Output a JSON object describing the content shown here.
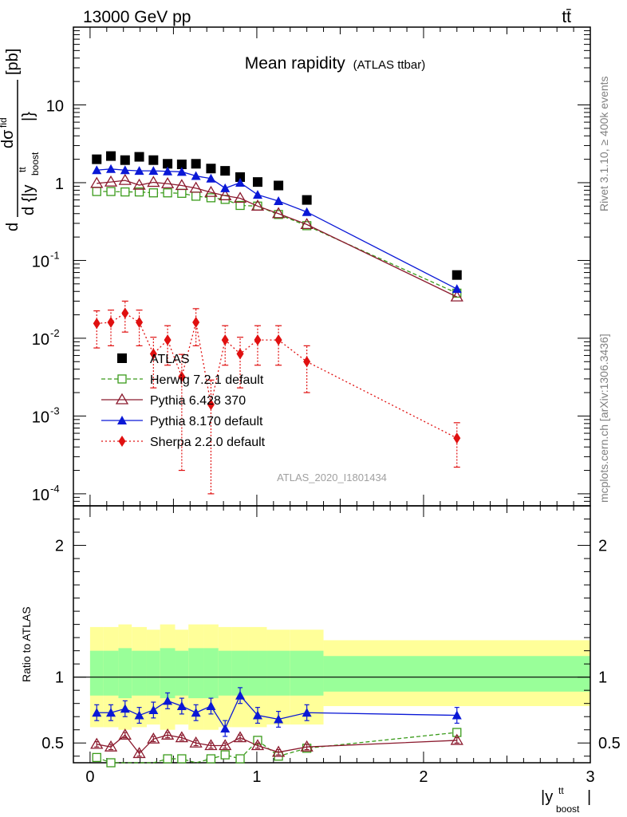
{
  "header": {
    "energy_label": "13000 GeV pp",
    "process_label": "tt̄",
    "plot_title": "Mean rapidity",
    "plot_subtitle": "(ATLAS ttbar)",
    "analysis_id": "ATLAS_2020_I1801434",
    "side_label_rivet": "Rivet 3.1.10, ≥ 400k events",
    "side_label_source": "mcplots.cern.ch [arXiv:1306.3436]"
  },
  "axis_labels": {
    "y_main": "d σ^fid / d |y^tt_boost| [pb]",
    "y_main_d1": "d",
    "y_main_sigma": "dσ",
    "y_main_fid": "fid",
    "y_main_denom": "d {|y",
    "y_main_tt": "tt",
    "y_main_boost": "boost",
    "y_main_close": "|}",
    "y_main_unit": "[pb]",
    "y_ratio": "Ratio to ATLAS",
    "x_bar": "|y",
    "x_tt": "tt",
    "x_boost": "boost",
    "x_close": "|"
  },
  "colors": {
    "atlas": "#000000",
    "herwig": "#3a9b1a",
    "pythia6": "#8b1a2e",
    "pythia8": "#0a18d6",
    "sherpa": "#e01010",
    "band_yellow": "#ffff99",
    "band_green": "#99ff99"
  },
  "chart_data": {
    "type": "scatter",
    "x_range": [
      -0.1,
      3.0
    ],
    "main_ylim": [
      7e-05,
      100
    ],
    "main_yscale": "log",
    "ratio_ylim": [
      0.35,
      2.3
    ],
    "ratio_ytick_labels": [
      "0.5",
      "1",
      "2"
    ],
    "x_tick_labels": [
      "0",
      "1",
      "2",
      "3"
    ],
    "main_ytick_labels": [
      {
        "base": "10",
        "exp": "-4"
      },
      {
        "base": "10",
        "exp": "-3"
      },
      {
        "base": "10",
        "exp": "-2"
      },
      {
        "base": "10",
        "exp": "-1"
      },
      {
        "base": "1",
        "exp": ""
      },
      {
        "base": "10",
        "exp": ""
      }
    ],
    "legend_position": "bottom-left",
    "bins": [
      [
        0.0,
        0.08
      ],
      [
        0.08,
        0.17
      ],
      [
        0.17,
        0.25
      ],
      [
        0.25,
        0.34
      ],
      [
        0.34,
        0.42
      ],
      [
        0.42,
        0.51
      ],
      [
        0.51,
        0.59
      ],
      [
        0.59,
        0.68
      ],
      [
        0.68,
        0.77
      ],
      [
        0.77,
        0.85
      ],
      [
        0.85,
        0.95
      ],
      [
        0.95,
        1.06
      ],
      [
        1.06,
        1.2
      ],
      [
        1.2,
        1.4
      ],
      [
        1.4,
        3.0
      ]
    ],
    "x": [
      0.04,
      0.125,
      0.21,
      0.295,
      0.38,
      0.465,
      0.55,
      0.635,
      0.725,
      0.81,
      0.9,
      1.005,
      1.13,
      1.3,
      2.2
    ],
    "series": [
      {
        "name": "ATLAS",
        "key": "atlas",
        "values": [
          2.0,
          2.2,
          1.95,
          2.15,
          1.95,
          1.75,
          1.72,
          1.75,
          1.52,
          1.42,
          1.18,
          1.02,
          0.92,
          0.6,
          0.065
        ]
      },
      {
        "name": "Herwig 7.2.1 default",
        "key": "herwig",
        "values": [
          0.77,
          0.77,
          0.76,
          0.76,
          0.74,
          0.74,
          0.73,
          0.67,
          0.64,
          0.61,
          0.51,
          0.5,
          0.39,
          0.28,
          0.038
        ],
        "ratio": [
          0.39,
          0.35,
          0.3,
          0.32,
          0.33,
          0.38,
          0.38,
          0.33,
          0.38,
          0.41,
          0.38,
          0.52,
          0.4,
          0.46,
          0.58
        ]
      },
      {
        "name": "Pythia 6.428 370",
        "key": "pythia6",
        "values": [
          0.98,
          1.02,
          1.07,
          0.93,
          1.01,
          0.97,
          0.92,
          0.85,
          0.75,
          0.68,
          0.63,
          0.5,
          0.4,
          0.29,
          0.034
        ],
        "ratio": [
          0.49,
          0.47,
          0.56,
          0.42,
          0.53,
          0.56,
          0.54,
          0.5,
          0.48,
          0.48,
          0.54,
          0.48,
          0.43,
          0.47,
          0.52
        ]
      },
      {
        "name": "Pythia 8.170 default",
        "key": "pythia8",
        "values": [
          1.45,
          1.5,
          1.45,
          1.42,
          1.42,
          1.4,
          1.38,
          1.22,
          1.13,
          0.85,
          1.0,
          0.7,
          0.58,
          0.42,
          0.043
        ],
        "ratio": [
          0.73,
          0.73,
          0.76,
          0.71,
          0.75,
          0.82,
          0.78,
          0.73,
          0.78,
          0.61,
          0.86,
          0.71,
          0.68,
          0.73,
          0.71
        ]
      },
      {
        "name": "Sherpa 2.2.0 default",
        "key": "sherpa",
        "values": [
          0.0155,
          0.016,
          0.021,
          0.016,
          0.0063,
          0.0095,
          0.0032,
          0.016,
          0.0014,
          0.0095,
          0.0063,
          0.0095,
          0.0095,
          0.005,
          0.00052
        ],
        "err_lo": [
          0.008,
          0.008,
          0.009,
          0.008,
          0.004,
          0.005,
          0.003,
          0.008,
          0.0013,
          0.005,
          0.004,
          0.005,
          0.005,
          0.003,
          0.0003
        ],
        "err_hi": [
          0.007,
          0.007,
          0.009,
          0.007,
          0.004,
          0.005,
          0.003,
          0.008,
          0.0015,
          0.005,
          0.004,
          0.005,
          0.005,
          0.003,
          0.0003
        ]
      }
    ],
    "ratio_band_yellow": [
      [
        0.62,
        1.38
      ],
      [
        0.62,
        1.38
      ],
      [
        0.6,
        1.4
      ],
      [
        0.62,
        1.38
      ],
      [
        0.64,
        1.36
      ],
      [
        0.6,
        1.4
      ],
      [
        0.64,
        1.36
      ],
      [
        0.6,
        1.4
      ],
      [
        0.6,
        1.4
      ],
      [
        0.62,
        1.38
      ],
      [
        0.62,
        1.38
      ],
      [
        0.62,
        1.38
      ],
      [
        0.64,
        1.36
      ],
      [
        0.64,
        1.36
      ],
      [
        0.78,
        1.28
      ]
    ],
    "ratio_band_green": [
      [
        0.86,
        1.2
      ],
      [
        0.86,
        1.2
      ],
      [
        0.84,
        1.22
      ],
      [
        0.86,
        1.2
      ],
      [
        0.86,
        1.2
      ],
      [
        0.84,
        1.22
      ],
      [
        0.86,
        1.2
      ],
      [
        0.84,
        1.22
      ],
      [
        0.84,
        1.22
      ],
      [
        0.86,
        1.2
      ],
      [
        0.86,
        1.2
      ],
      [
        0.86,
        1.2
      ],
      [
        0.86,
        1.2
      ],
      [
        0.86,
        1.2
      ],
      [
        0.89,
        1.16
      ]
    ]
  }
}
